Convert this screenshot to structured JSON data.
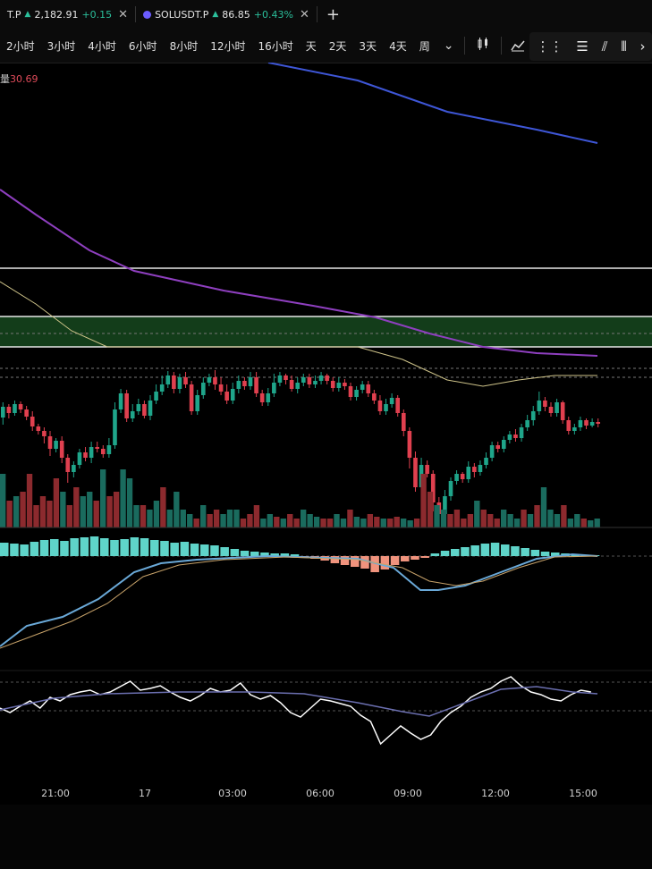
{
  "tabs": [
    {
      "symbol": "T.P",
      "price": "2,182.91",
      "change": "+0.15",
      "up_arrow": "▲",
      "close": "✕"
    },
    {
      "symbol": "SOLUSDT.P",
      "price": "86.85",
      "change": "+0.43%",
      "up_arrow": "▲",
      "close": "✕"
    }
  ],
  "add_tab": "+",
  "timeframes": [
    "2小时",
    "3小时",
    "4小时",
    "6小时",
    "8小时",
    "12小时",
    "16小时",
    "天",
    "2天",
    "3天",
    "4天",
    "周"
  ],
  "timeframe_dropdown": "⌄",
  "indicators_label": "指标",
  "volume_label": {
    "prefix": "量",
    "value": "30.69"
  },
  "colors": {
    "up": "#1fa58a",
    "down": "#e0404f",
    "vol_up": "#1a6b5e",
    "vol_down": "#8c2a2e",
    "ma_blue": "#3e56d6",
    "ma_purple": "#8e3fbf",
    "ma_yellow": "#cfc48a",
    "zone_fill": "#133d1a",
    "macd_fast": "#6aa9d8",
    "macd_slow": "#c8a36a",
    "rsi_white": "#ffffff",
    "rsi_avg": "#6b6fb0"
  },
  "chart_data": {
    "type": "candlestick",
    "x_ticks": [
      "21:00",
      "17",
      "03:00",
      "06:00",
      "09:00",
      "12:00",
      "15:00"
    ],
    "candles": [
      [
        417,
        405,
        425,
        400
      ],
      [
        405,
        412,
        418,
        402
      ],
      [
        412,
        402,
        415,
        398
      ],
      [
        402,
        408,
        412,
        399
      ],
      [
        408,
        416,
        420,
        404
      ],
      [
        416,
        427,
        432,
        410
      ],
      [
        427,
        432,
        436,
        424
      ],
      [
        432,
        438,
        446,
        428
      ],
      [
        438,
        452,
        460,
        432
      ],
      [
        452,
        443,
        456,
        440
      ],
      [
        443,
        462,
        468,
        438
      ],
      [
        462,
        478,
        490,
        458
      ],
      [
        478,
        470,
        484,
        466
      ],
      [
        470,
        456,
        474,
        452
      ],
      [
        456,
        462,
        466,
        450
      ],
      [
        462,
        450,
        468,
        444
      ],
      [
        450,
        452,
        456,
        444
      ],
      [
        452,
        458,
        462,
        448
      ],
      [
        458,
        448,
        462,
        440
      ],
      [
        448,
        408,
        452,
        400
      ],
      [
        408,
        390,
        412,
        385
      ],
      [
        390,
        418,
        422,
        386
      ],
      [
        418,
        410,
        422,
        402
      ],
      [
        410,
        402,
        414,
        396
      ],
      [
        402,
        415,
        418,
        398
      ],
      [
        415,
        398,
        420,
        392
      ],
      [
        398,
        388,
        402,
        380
      ],
      [
        388,
        380,
        392,
        370
      ],
      [
        380,
        370,
        384,
        365
      ],
      [
        370,
        385,
        390,
        366
      ],
      [
        385,
        372,
        390,
        368
      ],
      [
        372,
        380,
        384,
        366
      ],
      [
        380,
        410,
        414,
        376
      ],
      [
        410,
        392,
        414,
        386
      ],
      [
        392,
        378,
        396,
        372
      ],
      [
        378,
        372,
        382,
        368
      ],
      [
        372,
        380,
        386,
        364
      ],
      [
        380,
        388,
        392,
        372
      ],
      [
        388,
        398,
        402,
        380
      ],
      [
        398,
        385,
        402,
        378
      ],
      [
        385,
        376,
        390,
        370
      ],
      [
        376,
        382,
        386,
        372
      ],
      [
        382,
        372,
        386,
        366
      ],
      [
        372,
        390,
        394,
        366
      ],
      [
        390,
        400,
        404,
        386
      ],
      [
        400,
        390,
        404,
        384
      ],
      [
        390,
        378,
        394,
        368
      ],
      [
        378,
        370,
        382,
        366
      ],
      [
        370,
        375,
        380,
        368
      ],
      [
        375,
        385,
        388,
        370
      ],
      [
        385,
        378,
        390,
        372
      ],
      [
        378,
        372,
        382,
        368
      ],
      [
        372,
        380,
        384,
        368
      ],
      [
        380,
        376,
        384,
        370
      ],
      [
        376,
        370,
        380,
        366
      ],
      [
        370,
        376,
        380,
        368
      ],
      [
        376,
        384,
        388,
        372
      ],
      [
        384,
        378,
        388,
        372
      ],
      [
        378,
        382,
        386,
        374
      ],
      [
        382,
        394,
        398,
        378
      ],
      [
        394,
        386,
        398,
        382
      ],
      [
        386,
        380,
        390,
        376
      ],
      [
        380,
        390,
        394,
        376
      ],
      [
        390,
        398,
        402,
        386
      ],
      [
        398,
        410,
        414,
        392
      ],
      [
        410,
        402,
        414,
        396
      ],
      [
        402,
        395,
        406,
        390
      ],
      [
        395,
        412,
        416,
        392
      ],
      [
        412,
        432,
        438,
        408
      ],
      [
        432,
        462,
        474,
        428
      ],
      [
        462,
        495,
        500,
        455
      ],
      [
        495,
        470,
        498,
        462
      ],
      [
        470,
        480,
        484,
        465
      ],
      [
        480,
        512,
        522,
        476
      ],
      [
        512,
        525,
        528,
        506
      ],
      [
        525,
        505,
        528,
        498
      ],
      [
        505,
        488,
        510,
        484
      ],
      [
        488,
        480,
        492,
        476
      ],
      [
        480,
        486,
        490,
        478
      ],
      [
        486,
        472,
        490,
        466
      ],
      [
        472,
        478,
        484,
        468
      ],
      [
        478,
        470,
        482,
        465
      ],
      [
        470,
        462,
        474,
        456
      ],
      [
        462,
        448,
        466,
        444
      ],
      [
        448,
        452,
        456,
        444
      ],
      [
        452,
        442,
        456,
        438
      ],
      [
        442,
        436,
        446,
        432
      ],
      [
        436,
        440,
        444,
        430
      ],
      [
        440,
        428,
        444,
        424
      ],
      [
        428,
        420,
        432,
        414
      ],
      [
        420,
        410,
        426,
        404
      ],
      [
        410,
        398,
        414,
        388
      ],
      [
        398,
        405,
        410,
        394
      ],
      [
        405,
        412,
        416,
        400
      ],
      [
        412,
        400,
        416,
        396
      ],
      [
        400,
        420,
        424,
        398
      ],
      [
        420,
        432,
        436,
        416
      ],
      [
        432,
        428,
        436,
        424
      ],
      [
        428,
        420,
        432,
        416
      ],
      [
        420,
        426,
        430,
        418
      ],
      [
        426,
        422,
        428,
        418
      ],
      [
        422,
        424,
        428,
        418
      ]
    ],
    "volumes": [
      60,
      30,
      35,
      40,
      60,
      25,
      35,
      30,
      55,
      40,
      25,
      45,
      35,
      40,
      30,
      65,
      35,
      40,
      65,
      55,
      25,
      25,
      20,
      30,
      45,
      20,
      40,
      20,
      15,
      10,
      25,
      15,
      20,
      15,
      20,
      20,
      10,
      15,
      25,
      10,
      15,
      12,
      10,
      15,
      10,
      20,
      15,
      12,
      10,
      10,
      15,
      10,
      20,
      12,
      10,
      15,
      12,
      10,
      10,
      12,
      10,
      8,
      10,
      60,
      40,
      25,
      20,
      15,
      20,
      10,
      15,
      30,
      20,
      15,
      10,
      20,
      15,
      10,
      20,
      15,
      25,
      45,
      20,
      15,
      25,
      10,
      15,
      10,
      8,
      10
    ],
    "ma_blue": [
      [
        300,
        0
      ],
      [
        400,
        20
      ],
      [
        500,
        55
      ],
      [
        600,
        75
      ],
      [
        668,
        90
      ]
    ],
    "ma_purple": [
      [
        0,
        142
      ],
      [
        40,
        170
      ],
      [
        100,
        210
      ],
      [
        150,
        233
      ],
      [
        250,
        255
      ],
      [
        350,
        272
      ],
      [
        420,
        285
      ],
      [
        480,
        303
      ],
      [
        540,
        318
      ],
      [
        600,
        325
      ],
      [
        668,
        328
      ]
    ],
    "ma_yellow": [
      [
        0,
        245
      ],
      [
        40,
        270
      ],
      [
        80,
        300
      ],
      [
        120,
        318
      ],
      [
        200,
        318
      ],
      [
        300,
        318
      ],
      [
        400,
        318
      ],
      [
        450,
        332
      ],
      [
        500,
        355
      ],
      [
        540,
        362
      ],
      [
        580,
        355
      ],
      [
        620,
        350
      ],
      [
        668,
        350
      ]
    ],
    "zone": {
      "top": 284,
      "bottom": 318
    },
    "hlines": [
      230,
      303,
      342,
      352
    ],
    "macd_hist": [
      15,
      14,
      13,
      16,
      18,
      19,
      17,
      20,
      21,
      22,
      20,
      18,
      19,
      21,
      20,
      18,
      17,
      15,
      16,
      14,
      13,
      12,
      10,
      8,
      6,
      5,
      4,
      3,
      3,
      2,
      -2,
      -3,
      -5,
      -8,
      -10,
      -12,
      -14,
      -18,
      -15,
      -10,
      -6,
      -4,
      -2,
      3,
      6,
      8,
      10,
      12,
      14,
      15,
      13,
      11,
      9,
      7,
      5,
      4,
      3,
      2,
      1,
      1
    ],
    "macd_fast": [
      [
        0,
        653
      ],
      [
        30,
        630
      ],
      [
        70,
        620
      ],
      [
        110,
        600
      ],
      [
        150,
        570
      ],
      [
        180,
        560
      ],
      [
        220,
        556
      ],
      [
        300,
        552
      ],
      [
        400,
        555
      ],
      [
        440,
        565
      ],
      [
        470,
        590
      ],
      [
        490,
        590
      ],
      [
        520,
        585
      ],
      [
        560,
        570
      ],
      [
        600,
        555
      ],
      [
        640,
        550
      ],
      [
        668,
        552
      ]
    ],
    "macd_slow": [
      [
        0,
        655
      ],
      [
        40,
        640
      ],
      [
        80,
        625
      ],
      [
        120,
        605
      ],
      [
        160,
        575
      ],
      [
        200,
        562
      ],
      [
        250,
        556
      ],
      [
        320,
        553
      ],
      [
        400,
        556
      ],
      [
        450,
        565
      ],
      [
        480,
        580
      ],
      [
        510,
        585
      ],
      [
        540,
        580
      ],
      [
        580,
        565
      ],
      [
        620,
        553
      ],
      [
        668,
        552
      ]
    ],
    "rsi": [
      730,
      735,
      728,
      722,
      730,
      718,
      722,
      715,
      712,
      710,
      715,
      712,
      706,
      700,
      710,
      708,
      705,
      712,
      718,
      722,
      716,
      708,
      712,
      710,
      702,
      715,
      720,
      716,
      724,
      735,
      740,
      730,
      720,
      722,
      725,
      728,
      738,
      745,
      770,
      760,
      750,
      758,
      765,
      760,
      745,
      735,
      728,
      718,
      712,
      708,
      700,
      695,
      705,
      712,
      715,
      720,
      722,
      715,
      710,
      712
    ],
    "rsi_avg": [
      [
        0,
        738
      ],
      [
        60,
        725
      ],
      [
        120,
        720
      ],
      [
        200,
        718
      ],
      [
        280,
        718
      ],
      [
        340,
        720
      ],
      [
        400,
        730
      ],
      [
        450,
        740
      ],
      [
        480,
        745
      ],
      [
        520,
        730
      ],
      [
        560,
        715
      ],
      [
        600,
        712
      ],
      [
        640,
        718
      ],
      [
        668,
        720
      ]
    ]
  }
}
